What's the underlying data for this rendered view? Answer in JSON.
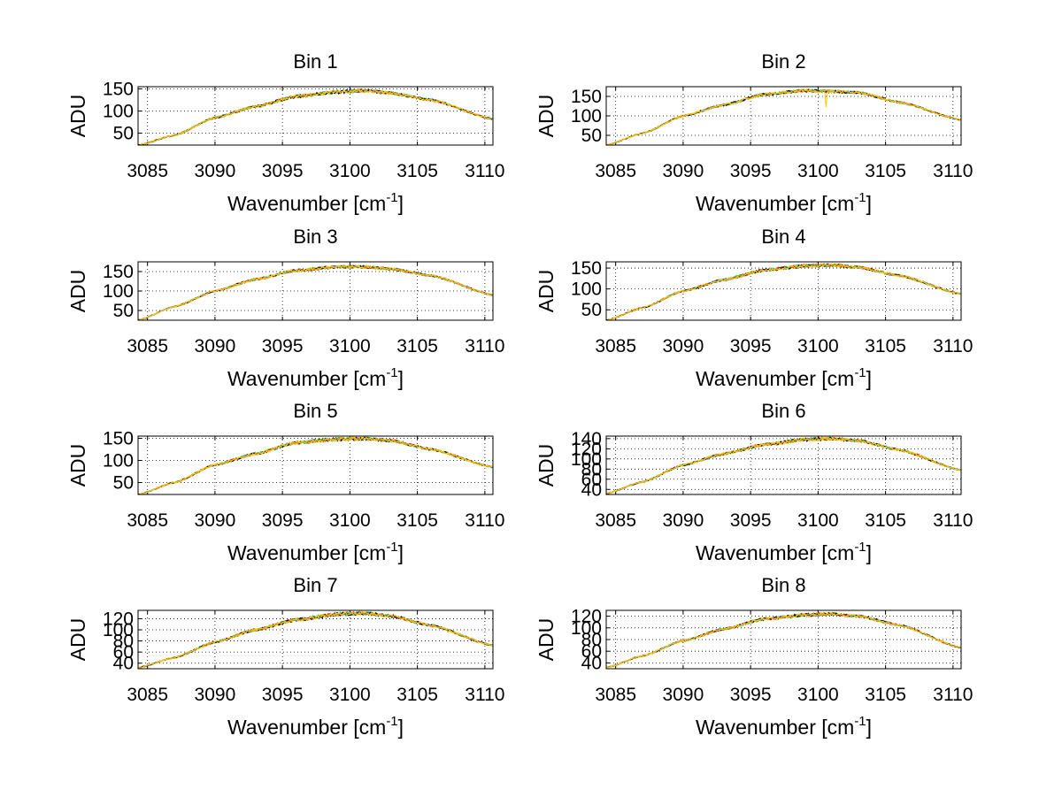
{
  "figure": {
    "background": "#ffffff",
    "grid": "dotted",
    "trace_colors": [
      "#0000ff",
      "#00bb00",
      "#ff0000",
      "#00bfbf",
      "#000000",
      "#ffa500",
      "#ffcc00"
    ]
  },
  "chart_data": [
    {
      "type": "line",
      "title": "Bin 1",
      "xlabel": "Wavenumber [cm",
      "xlabel_sup": "-1",
      "xlabel_end": "]",
      "ylabel": "ADU",
      "xlim": [
        3084.3,
        3110.6
      ],
      "ylim": [
        23,
        155
      ],
      "x_ticks": [
        3085,
        3090,
        3095,
        3100,
        3105,
        3110
      ],
      "y_ticks": [
        50,
        100,
        150
      ],
      "series_profile": {
        "x": [
          3084.3,
          3087,
          3090,
          3093,
          3096,
          3099,
          3101,
          3103,
          3106,
          3110.6
        ],
        "y": [
          23,
          45,
          85,
          110,
          133,
          143,
          146,
          141,
          125,
          82
        ]
      },
      "noise": 3,
      "spikes": []
    },
    {
      "type": "line",
      "title": "Bin 2",
      "xlabel": "Wavenumber [cm",
      "xlabel_sup": "-1",
      "xlabel_end": "]",
      "ylabel": "ADU",
      "xlim": [
        3084.3,
        3110.6
      ],
      "ylim": [
        25,
        175
      ],
      "x_ticks": [
        3085,
        3090,
        3095,
        3100,
        3105,
        3110
      ],
      "y_ticks": [
        50,
        100,
        150
      ],
      "series_profile": {
        "x": [
          3084.3,
          3087,
          3090,
          3093,
          3096,
          3099,
          3101,
          3103,
          3106,
          3110.6
        ],
        "y": [
          25,
          55,
          100,
          128,
          155,
          165,
          163,
          160,
          135,
          90
        ]
      },
      "noise": 3,
      "spikes": [
        {
          "x": 3100.6,
          "y": 122
        }
      ]
    },
    {
      "type": "line",
      "title": "Bin 3",
      "xlabel": "Wavenumber [cm",
      "xlabel_sup": "-1",
      "xlabel_end": "]",
      "ylabel": "ADU",
      "xlim": [
        3084.3,
        3110.6
      ],
      "ylim": [
        25,
        175
      ],
      "x_ticks": [
        3085,
        3090,
        3095,
        3100,
        3105,
        3110
      ],
      "y_ticks": [
        50,
        100,
        150
      ],
      "series_profile": {
        "x": [
          3084.3,
          3087,
          3090,
          3093,
          3096,
          3099,
          3101,
          3103,
          3106,
          3110.6
        ],
        "y": [
          25,
          60,
          100,
          130,
          153,
          162,
          162,
          157,
          140,
          90
        ]
      },
      "noise": 3,
      "spikes": []
    },
    {
      "type": "line",
      "title": "Bin 4",
      "xlabel": "Wavenumber [cm",
      "xlabel_sup": "-1",
      "xlabel_end": "]",
      "ylabel": "ADU",
      "xlim": [
        3084.3,
        3110.6
      ],
      "ylim": [
        25,
        165
      ],
      "x_ticks": [
        3085,
        3090,
        3095,
        3100,
        3105,
        3110
      ],
      "y_ticks": [
        50,
        100,
        150
      ],
      "series_profile": {
        "x": [
          3084.3,
          3087,
          3090,
          3093,
          3096,
          3099,
          3101,
          3103,
          3106,
          3110.6
        ],
        "y": [
          25,
          55,
          95,
          122,
          145,
          155,
          157,
          152,
          132,
          88
        ]
      },
      "noise": 3,
      "spikes": []
    },
    {
      "type": "line",
      "title": "Bin 5",
      "xlabel": "Wavenumber [cm",
      "xlabel_sup": "-1",
      "xlabel_end": "]",
      "ylabel": "ADU",
      "xlim": [
        3084.3,
        3110.6
      ],
      "ylim": [
        23,
        155
      ],
      "x_ticks": [
        3085,
        3090,
        3095,
        3100,
        3105,
        3110
      ],
      "y_ticks": [
        50,
        100,
        150
      ],
      "series_profile": {
        "x": [
          3084.3,
          3087,
          3090,
          3093,
          3096,
          3099,
          3101,
          3103,
          3106,
          3110.6
        ],
        "y": [
          23,
          50,
          90,
          115,
          140,
          148,
          149,
          145,
          125,
          85
        ]
      },
      "noise": 3,
      "spikes": []
    },
    {
      "type": "line",
      "title": "Bin 6",
      "xlabel": "Wavenumber [cm",
      "xlabel_sup": "-1",
      "xlabel_end": "]",
      "ylabel": "ADU",
      "xlim": [
        3084.3,
        3110.6
      ],
      "ylim": [
        30,
        145
      ],
      "x_ticks": [
        3085,
        3090,
        3095,
        3100,
        3105,
        3110
      ],
      "y_ticks": [
        40,
        60,
        80,
        100,
        120,
        140
      ],
      "y_tick_labels": [
        "40",
        "60",
        "80",
        "100",
        "120",
        "140"
      ],
      "series_profile": {
        "x": [
          3084.3,
          3087,
          3090,
          3093,
          3096,
          3099,
          3101,
          3103,
          3106,
          3110.6
        ],
        "y": [
          32,
          55,
          88,
          110,
          128,
          138,
          140,
          136,
          118,
          78
        ]
      },
      "noise": 2.5,
      "spikes": []
    },
    {
      "type": "line",
      "title": "Bin 7",
      "xlabel": "Wavenumber [cm",
      "xlabel_sup": "-1",
      "xlabel_end": "]",
      "ylabel": "ADU",
      "xlim": [
        3084.3,
        3110.6
      ],
      "ylim": [
        30,
        135
      ],
      "x_ticks": [
        3085,
        3090,
        3095,
        3100,
        3105,
        3110
      ],
      "y_ticks": [
        40,
        60,
        80,
        100,
        120
      ],
      "y_tick_labels": [
        "40",
        "60",
        "80",
        "100",
        "120"
      ],
      "series_profile": {
        "x": [
          3084.3,
          3087,
          3090,
          3093,
          3096,
          3099,
          3101,
          3103,
          3106,
          3110.6
        ],
        "y": [
          32,
          50,
          78,
          100,
          118,
          128,
          130,
          125,
          108,
          72
        ]
      },
      "noise": 2.5,
      "spikes": [
        {
          "x": 3107.3,
          "y": 95
        }
      ]
    },
    {
      "type": "line",
      "title": "Bin 8",
      "xlabel": "Wavenumber [cm",
      "xlabel_sup": "-1",
      "xlabel_end": "]",
      "ylabel": "ADU",
      "xlim": [
        3084.3,
        3110.6
      ],
      "ylim": [
        30,
        130
      ],
      "x_ticks": [
        3085,
        3090,
        3095,
        3100,
        3105,
        3110
      ],
      "y_ticks": [
        40,
        60,
        80,
        100,
        120
      ],
      "y_tick_labels": [
        "40",
        "60",
        "80",
        "100",
        "120"
      ],
      "series_profile": {
        "x": [
          3084.3,
          3087,
          3090,
          3093,
          3096,
          3099,
          3101,
          3103,
          3106,
          3110.6
        ],
        "y": [
          32,
          52,
          78,
          98,
          115,
          122,
          124,
          120,
          105,
          66
        ]
      },
      "noise": 2,
      "spikes": []
    }
  ]
}
